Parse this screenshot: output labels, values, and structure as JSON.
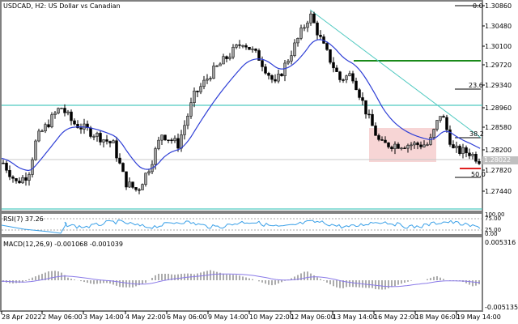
{
  "chart_title": "USDCAD, H2:  US Dollar vs Canadian",
  "price_axis": {
    "labels": [
      "1.30860",
      "1.30480",
      "1.30100",
      "1.29720",
      "1.29340",
      "1.28960",
      "1.28580",
      "1.28200",
      "1.27820",
      "1.27440"
    ],
    "current_price": "1.28022"
  },
  "fib_levels": [
    {
      "label": "0.0"
    },
    {
      "label": "23.6"
    },
    {
      "label": "38.2"
    },
    {
      "label": "50.0"
    }
  ],
  "time_axis": {
    "labels": [
      "28 Apr 2022",
      "2 May 06:00",
      "3 May 14:00",
      "4 May 22:00",
      "6 May 06:00",
      "9 May 14:00",
      "10 May 22:00",
      "12 May 06:00",
      "13 May 14:00",
      "16 May 22:00",
      "18 May 06:00",
      "19 May 14:00"
    ]
  },
  "rsi": {
    "label": "RSI(7) 37.26",
    "axis_labels": [
      "100.00",
      "75.00",
      "25.00",
      "0.00"
    ]
  },
  "macd": {
    "label": "MACD(12,26,9) -0.001068 -0.001039",
    "axis_labels": [
      "0.005316",
      "-0.005135"
    ]
  },
  "colors": {
    "bull_candle": "#a0a0a0",
    "bear_candle": "#000000",
    "moving_average": "#2f3fd6",
    "horizontal_level": "#4fc9c0",
    "trendline": "#4fc9c0",
    "resistance": "#1a8a1a",
    "support": "#e02020",
    "range_box": "#f7d5d5",
    "rsi_line": "#3aa0e8",
    "macd_signal": "#8a7ae8",
    "macd_hist": "#909090"
  },
  "chart_data": [
    {
      "type": "candlestick",
      "title": "USDCAD, H2: US Dollar vs Canadian",
      "x": [
        "28 Apr 2022",
        "2 May 06:00",
        "3 May 14:00",
        "4 May 22:00",
        "6 May 06:00",
        "9 May 14:00",
        "10 May 22:00",
        "12 May 06:00",
        "13 May 14:00",
        "16 May 22:00",
        "18 May 06:00",
        "19 May 14:00"
      ],
      "close_approx": [
        1.28,
        1.289,
        1.285,
        1.276,
        1.284,
        1.299,
        1.2975,
        1.305,
        1.293,
        1.282,
        1.288,
        1.2802
      ],
      "ylim": [
        1.271,
        1.309
      ],
      "overlays": [
        "Moving average (blue)",
        "Horizontal level 1.2896",
        "Resistance 1.2975",
        "Descending trendline from 1.3070 high",
        "Fibonacci 0.0=1.3086, 23.6=1.2936, 38.2=1.2840, 50.0=1.2768"
      ],
      "current_price": 1.28022
    },
    {
      "type": "line",
      "title": "RSI(7) 37.26",
      "ylim": [
        0,
        100
      ],
      "levels": [
        75,
        25
      ],
      "last_value": 37.26
    },
    {
      "type": "bar",
      "title": "MACD(12,26,9) -0.001068 -0.001039",
      "ylim": [
        -0.005135,
        0.005316
      ],
      "macd_last": -0.001068,
      "signal_last": -0.001039
    }
  ]
}
